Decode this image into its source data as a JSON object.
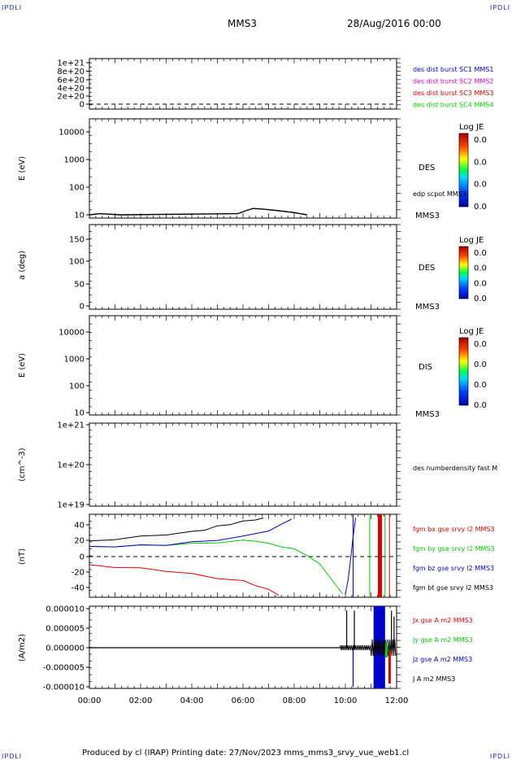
{
  "header": {
    "corner_tl": "IPDLI",
    "corner_tr": "IPDLI",
    "corner_bl": "IPDLI",
    "corner_br": "IPDLI",
    "spacecraft": "MMS3",
    "date": "28/Aug/2016 00:00"
  },
  "footer": {
    "text": "Produced by cl (IRAP)   Printing date: 27/Nov/2023   mms_mms3_srvy_vue_web1.cl"
  },
  "colors": {
    "blue": "#0000cc",
    "magenta": "#dd00dd",
    "red": "#dd0000",
    "green": "#00cc00",
    "black": "#000000"
  },
  "chart_data": [
    {
      "type": "line",
      "id": "panel1",
      "ylabel": "",
      "yticks": [
        "1e+21",
        "8e+20",
        "6e+20",
        "4e+20",
        "2e+20",
        "0"
      ],
      "legend": [
        {
          "label": "des dist burst SC1 MMS1",
          "color": "#0000cc"
        },
        {
          "label": "des dist burst SC2 MMS2",
          "color": "#dd00dd"
        },
        {
          "label": "des dist burst SC3 MMS3",
          "color": "#dd0000"
        },
        {
          "label": "des dist burst SC4 MMS4",
          "color": "#00cc00"
        }
      ],
      "reference_line": 0
    },
    {
      "type": "heatmap",
      "id": "panel2",
      "ylabel": "E (eV)",
      "yscale": "log",
      "ylim": [
        10,
        20000
      ],
      "yticks": [
        "10000",
        "1000",
        "100",
        "10"
      ],
      "species": "DES",
      "sc": "MMS3",
      "overlay_label": "edp scpot MMS3",
      "overlay": {
        "x": [
          0.0,
          0.4,
          1.2,
          5.8,
          6.1,
          6.4,
          6.8,
          7.4,
          8.0,
          8.5
        ],
        "y": [
          10,
          11,
          10,
          11,
          14,
          17,
          16,
          14,
          12,
          10
        ]
      },
      "colorbar": {
        "title": "Log JE",
        "ticks": [
          "0.0",
          "0.0",
          "0.0",
          "0.0"
        ]
      }
    },
    {
      "type": "heatmap",
      "id": "panel3",
      "ylabel": "a (deg)",
      "ylim": [
        0,
        180
      ],
      "yticks": [
        "150",
        "100",
        "50",
        "0"
      ],
      "species": "DES",
      "sc": "MMS3",
      "colorbar": {
        "title": "Log JE",
        "ticks": [
          "0.0",
          "0.0",
          "0.0",
          "0.0"
        ]
      }
    },
    {
      "type": "heatmap",
      "id": "panel4",
      "ylabel": "E (eV)",
      "yscale": "log",
      "ylim": [
        10,
        20000
      ],
      "yticks": [
        "10000",
        "1000",
        "100",
        "10"
      ],
      "species": "DIS",
      "sc": "MMS3",
      "colorbar": {
        "title": "Log JE",
        "ticks": [
          "0.0",
          "0.0",
          "0.0",
          "0.0"
        ]
      }
    },
    {
      "type": "line",
      "id": "panel5",
      "ylabel": "(cm^-3)",
      "yscale": "log",
      "yticks": [
        "1e+21",
        "1e+20",
        "1e+19"
      ],
      "legend": [
        {
          "label": "des numberdensity fast M",
          "color": "#000000"
        }
      ]
    },
    {
      "type": "line",
      "id": "panel6",
      "ylabel": "(nT)",
      "ylim": [
        -48,
        48
      ],
      "yticks": [
        "40",
        "20",
        "0",
        "-20",
        "-40"
      ],
      "reference_line": 0,
      "series": [
        {
          "name": "fgm bx gse srvy l2 MMS3",
          "color": "#dd0000",
          "x": [
            0.0,
            1.0,
            2.0,
            3.0,
            4.0,
            5.0,
            6.0,
            6.5,
            7.0,
            7.4
          ],
          "y": [
            -11,
            -13,
            -15,
            -18,
            -22,
            -27,
            -31,
            -36,
            -42,
            -48
          ]
        },
        {
          "name": "fgm by gse srvy l2 MMS3",
          "color": "#00cc00",
          "x": [
            0.0,
            1.0,
            2.0,
            3.0,
            4.0,
            5.0,
            6.0,
            6.5,
            7.0,
            7.5,
            8.0,
            8.5,
            9.0,
            9.5,
            9.9
          ],
          "y": [
            12,
            13,
            14,
            15,
            16,
            18,
            20,
            20,
            16,
            13,
            9,
            2,
            -10,
            -30,
            -48
          ]
        },
        {
          "name": "fgm bz gse srvy l2 MMS3",
          "color": "#0000cc",
          "x": [
            0.0,
            1.0,
            2.0,
            3.0,
            4.0,
            5.0,
            6.0,
            7.0,
            7.5,
            7.9
          ],
          "y": [
            12,
            13,
            14,
            15,
            18,
            21,
            25,
            33,
            40,
            48
          ],
          "x2": [
            10.0,
            10.1,
            10.2,
            10.3,
            10.4
          ],
          "y2": [
            -48,
            -30,
            -5,
            25,
            48
          ]
        },
        {
          "name": "fgm bt gse srvy l2 MMS3",
          "color": "#000000",
          "x": [
            0.0,
            1.0,
            2.0,
            3.0,
            4.0,
            4.5,
            5.0,
            5.5,
            6.0,
            6.5,
            6.8
          ],
          "y": [
            19,
            22,
            25,
            28,
            31,
            34,
            38,
            41,
            44,
            47,
            48
          ]
        }
      ],
      "vertical_bars": [
        {
          "x": 10.3,
          "color": "#0000cc",
          "width": 1
        },
        {
          "x": 10.95,
          "color": "#00cc00",
          "width": 1
        },
        {
          "x": 11.35,
          "color": "#dd0000",
          "width": 5
        },
        {
          "x": 11.55,
          "color": "#00cc00",
          "width": 1
        },
        {
          "x": 11.72,
          "color": "#dd0000",
          "width": 1
        }
      ]
    },
    {
      "type": "line",
      "id": "panel7",
      "ylabel": "(A/m2)",
      "ylim": [
        -1e-05,
        1e-05
      ],
      "yticks": [
        "0.000010",
        "0.000005",
        "0.000000",
        "-0.000005",
        "-0.000010"
      ],
      "xlim": [
        0,
        12
      ],
      "xticks": [
        "00:00",
        "02:00",
        "04:00",
        "06:00",
        "08:00",
        "10:00",
        "12:00"
      ],
      "series": [
        {
          "name": "Jx gse A m2 MMS3",
          "color": "#dd0000"
        },
        {
          "name": "Jy gse A m2 MMS3",
          "color": "#00cc00"
        },
        {
          "name": "Jz gse A m2 MMS3",
          "color": "#0000cc"
        },
        {
          "name": "J A m2 MMS3",
          "color": "#000000"
        }
      ],
      "spikes": [
        {
          "x": 10.05,
          "y": 9.5e-06,
          "color": "#000000"
        },
        {
          "x": 10.3,
          "y": -1e-05,
          "color": "#0000cc"
        },
        {
          "x": 10.35,
          "y": 9.5e-06,
          "color": "#000000"
        },
        {
          "x": 11.8,
          "y": 9.5e-06,
          "color": "#000000"
        },
        {
          "x": 11.9,
          "y": 8e-06,
          "color": "#000000"
        }
      ],
      "blue_fill": {
        "x0": 11.1,
        "x1": 11.55
      }
    }
  ]
}
